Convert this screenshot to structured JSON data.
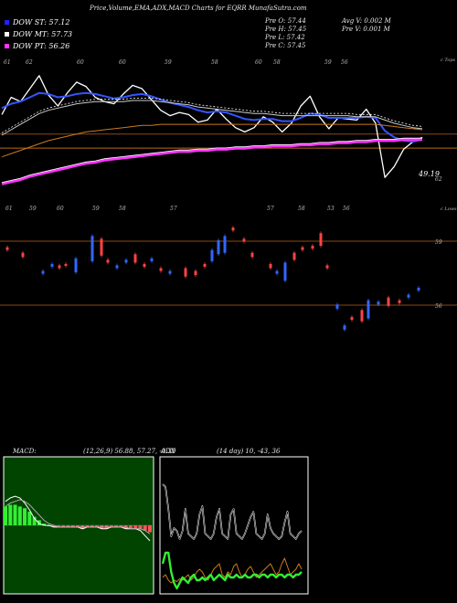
{
  "header": {
    "title": "Price,Volume,EMA,ADX,MACD Charts for EQRR MunafaSutra.com"
  },
  "legend": [
    {
      "label": "DOW ST: 57.12",
      "color": "#2222ff"
    },
    {
      "label": "DOW MT: 57.73",
      "color": "#ffffff"
    },
    {
      "label": "DOW PT: 56.26",
      "color": "#ff33ff"
    }
  ],
  "stats": {
    "col1": [
      "Pre  O: 57.44",
      "Pre  H: 57.45",
      "Pre  L: 57.42",
      "Pre  C: 57.45"
    ],
    "col2": [
      "Avg V: 0.002  M",
      "Pre  V: 0.001 M"
    ]
  },
  "macd_label": "MACD:",
  "macd_values": "(12,26,9) 56.88,  57.27,  -0.39",
  "adx_label": "ADX",
  "adx_values": "(14  day) 10,  -43,  36",
  "chart_data": [
    {
      "type": "line",
      "panel": "price",
      "price_label": "49.19",
      "right_labels": [
        "c Tops",
        "c Lows",
        "62",
        "59",
        "56"
      ],
      "top_tick_labels": [
        "61",
        "62",
        "60",
        "60",
        "59",
        "58",
        "60",
        "58",
        "59",
        "56"
      ],
      "low_tick_labels": [
        "61",
        "59",
        "60",
        "59",
        "58",
        "57",
        "57",
        "58",
        "53",
        "56"
      ],
      "series": [
        {
          "key": "close",
          "color": "#ffffff",
          "values": [
            59.4,
            61.0,
            60.6,
            61.8,
            63.0,
            61.2,
            60.2,
            61.4,
            62.4,
            62.0,
            61.0,
            60.6,
            60.4,
            61.3,
            62.1,
            61.8,
            60.8,
            59.8,
            59.3,
            59.6,
            59.4,
            58.7,
            58.9,
            59.9,
            59.0,
            58.2,
            57.8,
            58.2,
            59.2,
            58.7,
            57.8,
            58.6,
            60.2,
            61.1,
            59.2,
            58.1,
            59.1,
            59.0,
            58.9,
            59.9,
            58.6,
            53.6,
            54.6,
            56.2,
            56.9,
            57.3
          ]
        },
        {
          "key": "ema_short",
          "color": "#3355ff",
          "values": [
            60.0,
            60.4,
            60.6,
            61.0,
            61.4,
            61.3,
            61.0,
            61.1,
            61.3,
            61.4,
            61.3,
            61.1,
            60.9,
            61.0,
            61.2,
            61.3,
            61.1,
            60.8,
            60.5,
            60.3,
            60.1,
            59.8,
            59.6,
            59.7,
            59.6,
            59.3,
            59.0,
            58.9,
            59.0,
            59.0,
            58.8,
            58.8,
            59.1,
            59.5,
            59.4,
            59.1,
            59.1,
            59.1,
            59.1,
            59.2,
            59.1,
            57.9,
            57.3,
            57.0,
            56.9,
            57.1
          ]
        },
        {
          "key": "ema_mid",
          "color": "#cccccc",
          "values": [
            57.5,
            58.0,
            58.5,
            59.0,
            59.5,
            59.8,
            60.0,
            60.2,
            60.4,
            60.5,
            60.6,
            60.6,
            60.6,
            60.6,
            60.7,
            60.7,
            60.7,
            60.6,
            60.5,
            60.4,
            60.3,
            60.1,
            60.0,
            59.9,
            59.8,
            59.7,
            59.6,
            59.5,
            59.5,
            59.4,
            59.3,
            59.3,
            59.3,
            59.3,
            59.3,
            59.3,
            59.3,
            59.3,
            59.2,
            59.2,
            59.2,
            58.9,
            58.6,
            58.4,
            58.2,
            58.1
          ]
        },
        {
          "key": "ema_long",
          "color": "#cc7a1a",
          "values": [
            55.5,
            55.8,
            56.1,
            56.4,
            56.7,
            57.0,
            57.2,
            57.4,
            57.6,
            57.8,
            57.9,
            58.0,
            58.1,
            58.2,
            58.3,
            58.4,
            58.4,
            58.5,
            58.5,
            58.5,
            58.5,
            58.5,
            58.5,
            58.5,
            58.5,
            58.5,
            58.5,
            58.5,
            58.5,
            58.5,
            58.5,
            58.5,
            58.5,
            58.5,
            58.5,
            58.5,
            58.5,
            58.5,
            58.5,
            58.5,
            58.5,
            58.4,
            58.3,
            58.2,
            58.1,
            58.0
          ]
        },
        {
          "key": "ema_pt",
          "color": "#ff33ff",
          "values": [
            53.0,
            53.2,
            53.4,
            53.7,
            53.9,
            54.1,
            54.3,
            54.5,
            54.7,
            54.9,
            55.0,
            55.2,
            55.3,
            55.4,
            55.5,
            55.6,
            55.7,
            55.8,
            55.9,
            56.0,
            56.0,
            56.1,
            56.1,
            56.2,
            56.2,
            56.3,
            56.3,
            56.4,
            56.4,
            56.5,
            56.5,
            56.5,
            56.6,
            56.6,
            56.7,
            56.7,
            56.8,
            56.8,
            56.9,
            56.9,
            57.0,
            57.0,
            57.0,
            57.1,
            57.1,
            57.1
          ]
        }
      ],
      "levels": [
        {
          "value": 57.6,
          "color": "#8a4a14"
        },
        {
          "value": 56.3,
          "color": "#b86a1a"
        }
      ]
    },
    {
      "type": "bar",
      "panel": "volume",
      "levels": [
        {
          "label": "59",
          "color": "#8a4a14"
        },
        {
          "label": "56",
          "color": "#8a4a14"
        }
      ],
      "candles": [
        {
          "x": 8,
          "o": 59.0,
          "c": 58.8,
          "dir": "down"
        },
        {
          "x": 25,
          "o": 58.6,
          "c": 58.3,
          "dir": "down"
        },
        {
          "x": 47,
          "o": 57.3,
          "c": 57.1,
          "dir": "up"
        },
        {
          "x": 57,
          "o": 57.6,
          "c": 57.8,
          "dir": "up"
        },
        {
          "x": 65,
          "o": 57.7,
          "c": 57.5,
          "dir": "down"
        },
        {
          "x": 72,
          "o": 57.8,
          "c": 57.7,
          "dir": "down"
        },
        {
          "x": 83,
          "o": 57.2,
          "c": 58.2,
          "dir": "up"
        },
        {
          "x": 101,
          "o": 58.0,
          "c": 59.8,
          "dir": "up"
        },
        {
          "x": 111,
          "o": 59.6,
          "c": 58.4,
          "dir": "down"
        },
        {
          "x": 118,
          "o": 58.1,
          "c": 57.9,
          "dir": "down"
        },
        {
          "x": 128,
          "o": 57.7,
          "c": 57.5,
          "dir": "up"
        },
        {
          "x": 138,
          "o": 57.9,
          "c": 58.1,
          "dir": "up"
        },
        {
          "x": 148,
          "o": 58.5,
          "c": 57.9,
          "dir": "down"
        },
        {
          "x": 158,
          "o": 57.8,
          "c": 57.6,
          "dir": "down"
        },
        {
          "x": 166,
          "o": 58.0,
          "c": 58.2,
          "dir": "up"
        },
        {
          "x": 176,
          "o": 57.5,
          "c": 57.3,
          "dir": "down"
        },
        {
          "x": 186,
          "o": 57.3,
          "c": 57.1,
          "dir": "up"
        },
        {
          "x": 203,
          "o": 57.5,
          "c": 56.9,
          "dir": "down"
        },
        {
          "x": 214,
          "o": 57.0,
          "c": 57.3,
          "dir": "down"
        },
        {
          "x": 224,
          "o": 57.8,
          "c": 57.6,
          "dir": "down"
        },
        {
          "x": 232,
          "o": 58.0,
          "c": 58.8,
          "dir": "up"
        },
        {
          "x": 239,
          "o": 58.5,
          "c": 59.5,
          "dir": "up"
        },
        {
          "x": 246,
          "o": 58.6,
          "c": 59.8,
          "dir": "up"
        },
        {
          "x": 255,
          "o": 60.2,
          "c": 60.4,
          "dir": "down"
        },
        {
          "x": 267,
          "o": 59.6,
          "c": 59.4,
          "dir": "down"
        },
        {
          "x": 276,
          "o": 58.6,
          "c": 58.3,
          "dir": "down"
        },
        {
          "x": 296,
          "o": 57.8,
          "c": 57.5,
          "dir": "down"
        },
        {
          "x": 303,
          "o": 57.3,
          "c": 57.1,
          "dir": "up"
        },
        {
          "x": 312,
          "o": 56.6,
          "c": 57.9,
          "dir": "up"
        },
        {
          "x": 322,
          "o": 58.6,
          "c": 58.1,
          "dir": "down"
        },
        {
          "x": 331,
          "o": 59.0,
          "c": 58.8,
          "dir": "down"
        },
        {
          "x": 342,
          "o": 58.9,
          "c": 59.1,
          "dir": "down"
        },
        {
          "x": 351,
          "o": 60.0,
          "c": 59.1,
          "dir": "down"
        },
        {
          "x": 358,
          "o": 57.7,
          "c": 57.5,
          "dir": "down"
        },
        {
          "x": 369,
          "o": 54.9,
          "c": 54.6,
          "dir": "up"
        },
        {
          "x": 377,
          "o": 53.4,
          "c": 53.1,
          "dir": "up"
        },
        {
          "x": 385,
          "o": 54.0,
          "c": 53.8,
          "dir": "down"
        },
        {
          "x": 396,
          "o": 54.5,
          "c": 53.7,
          "dir": "down"
        },
        {
          "x": 403,
          "o": 53.9,
          "c": 55.2,
          "dir": "up"
        },
        {
          "x": 414,
          "o": 55.1,
          "c": 54.9,
          "dir": "up"
        },
        {
          "x": 425,
          "o": 55.4,
          "c": 54.8,
          "dir": "down"
        },
        {
          "x": 437,
          "o": 55.0,
          "c": 55.2,
          "dir": "down"
        },
        {
          "x": 447,
          "o": 55.4,
          "c": 55.6,
          "dir": "up"
        },
        {
          "x": 458,
          "o": 55.9,
          "c": 56.1,
          "dir": "up"
        }
      ]
    },
    {
      "type": "line",
      "panel": "macd",
      "series": [
        {
          "key": "macd",
          "color": "#ffffff",
          "values": [
            1.4,
            1.6,
            1.7,
            1.6,
            1.3,
            0.9,
            0.4,
            0.1,
            0.0,
            0.0,
            -0.1,
            -0.1,
            -0.1,
            -0.1,
            -0.1,
            -0.1,
            -0.2,
            -0.1,
            -0.1,
            -0.1,
            -0.2,
            -0.2,
            -0.1,
            -0.1,
            -0.1,
            -0.2,
            -0.2,
            -0.2,
            -0.3,
            -0.6,
            -0.9
          ]
        },
        {
          "key": "signal",
          "color": "#aaaaaa",
          "values": [
            1.1,
            1.3,
            1.4,
            1.5,
            1.4,
            1.2,
            0.9,
            0.6,
            0.3,
            0.1,
            0.0,
            -0.1,
            -0.1,
            -0.1,
            -0.1,
            -0.1,
            -0.1,
            -0.1,
            -0.1,
            -0.1,
            -0.1,
            -0.1,
            -0.1,
            -0.1,
            -0.1,
            -0.1,
            -0.2,
            -0.2,
            -0.2,
            -0.3,
            -0.5
          ]
        }
      ],
      "histogram": [
        1.1,
        1.2,
        1.2,
        1.1,
        1.0,
        0.8,
        0.5,
        0.3,
        0.1,
        0.0,
        -0.1,
        -0.1,
        -0.1,
        -0.1,
        -0.1,
        -0.1,
        -0.2,
        -0.1,
        -0.1,
        -0.1,
        -0.2,
        -0.2,
        -0.1,
        -0.1,
        -0.1,
        -0.2,
        -0.2,
        -0.2,
        -0.2,
        -0.3,
        -0.4
      ]
    },
    {
      "type": "line",
      "panel": "adx",
      "series": [
        {
          "key": "plus_di",
          "color": "#ffffff",
          "values": [
            80,
            78,
            62,
            42,
            48,
            46,
            40,
            46,
            62,
            44,
            42,
            40,
            44,
            58,
            64,
            44,
            42,
            40,
            44,
            56,
            62,
            44,
            42,
            40,
            58,
            62,
            44,
            42,
            40,
            44,
            50,
            56,
            60,
            44,
            42,
            40,
            44,
            58,
            48,
            44,
            42,
            40,
            42,
            52,
            60,
            44,
            42,
            40,
            44,
            46
          ]
        },
        {
          "key": "minus_di",
          "color": "#cc7a1a",
          "values": [
            12,
            14,
            10,
            8,
            10,
            9,
            11,
            10,
            12,
            14,
            10,
            12,
            16,
            18,
            16,
            12,
            10,
            14,
            18,
            20,
            22,
            14,
            12,
            16,
            14,
            20,
            22,
            16,
            12,
            14,
            18,
            20,
            16,
            12,
            14,
            16,
            18,
            20,
            22,
            18,
            14,
            16,
            22,
            26,
            20,
            14,
            16,
            18,
            22,
            18
          ]
        },
        {
          "key": "adx",
          "color": "#33ee33",
          "values": [
            22,
            30,
            30,
            16,
            8,
            4,
            8,
            12,
            10,
            8,
            12,
            14,
            10,
            10,
            12,
            10,
            12,
            14,
            10,
            12,
            14,
            12,
            10,
            14,
            12,
            12,
            14,
            12,
            12,
            14,
            12,
            12,
            14,
            14,
            12,
            14,
            14,
            12,
            14,
            14,
            12,
            14,
            14,
            12,
            14,
            14,
            12,
            14,
            14,
            16
          ]
        }
      ]
    }
  ]
}
